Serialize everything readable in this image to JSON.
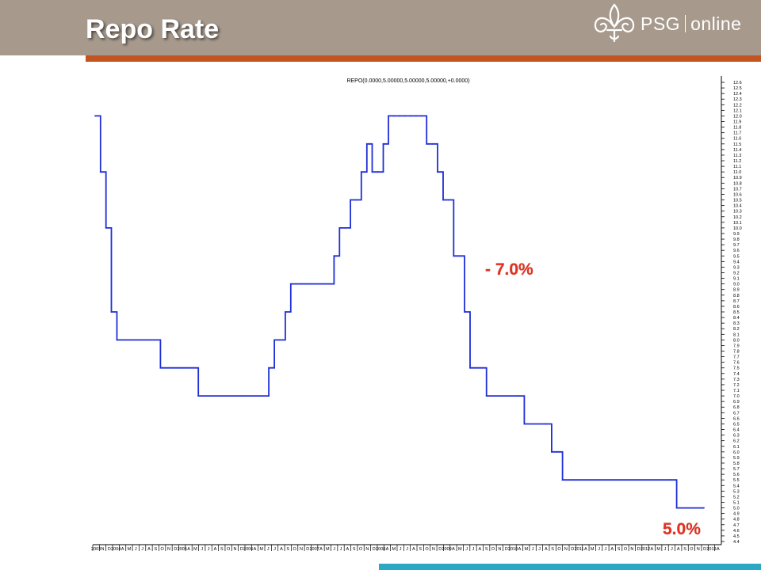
{
  "header": {
    "title": "Repo Rate",
    "logo_brand": "PSG",
    "logo_suffix": "online"
  },
  "colors": {
    "header_bg": "#a79a8d",
    "accent_bar": "#c4541f",
    "line": "#1f2ed6",
    "annotation": "#e8301e",
    "bottom_bar": "#2ba8c4"
  },
  "chart_data": {
    "type": "line",
    "title": "REPO(0.0000,5.00000,5.00000,5.00000,+0.0000)",
    "xlabel": "",
    "ylabel": "",
    "ylim": [
      4.4,
      12.6
    ],
    "yaxis_position": "right",
    "ytick_step": 0.1,
    "step": true,
    "x_tick_labels": [
      "2003",
      "N",
      "D",
      "2004",
      "A",
      "M",
      "J",
      "J",
      "A",
      "S",
      "O",
      "N",
      "D",
      "2005",
      "A",
      "M",
      "J",
      "J",
      "A",
      "S",
      "O",
      "N",
      "D",
      "2006",
      "A",
      "M",
      "J",
      "J",
      "A",
      "S",
      "O",
      "N",
      "D",
      "2007",
      "A",
      "M",
      "J",
      "J",
      "A",
      "S",
      "O",
      "N",
      "D",
      "2008",
      "A",
      "M",
      "J",
      "J",
      "A",
      "S",
      "O",
      "N",
      "D",
      "2009",
      "A",
      "M",
      "J",
      "J",
      "A",
      "S",
      "O",
      "N",
      "D",
      "2010",
      "A",
      "M",
      "J",
      "J",
      "A",
      "S",
      "O",
      "N",
      "D",
      "2011",
      "A",
      "M",
      "J",
      "J",
      "A",
      "S",
      "O",
      "N",
      "D",
      "2012",
      "A",
      "M",
      "J",
      "J",
      "A",
      "S",
      "O",
      "N",
      "D",
      "2013",
      "A"
    ],
    "series": [
      {
        "name": "",
        "x": [
          "2003-09",
          "2003-10",
          "2003-11",
          "2003-12",
          "2004-01",
          "2004-02",
          "2004-08",
          "2004-09",
          "2004-12",
          "2005-04",
          "2005-12",
          "2006-05",
          "2006-06",
          "2006-07",
          "2006-08",
          "2006-09",
          "2006-10",
          "2006-11",
          "2006-12",
          "2007-05",
          "2007-06",
          "2007-07",
          "2007-08",
          "2007-09",
          "2007-10",
          "2007-11",
          "2007-12",
          "2008-01",
          "2008-02",
          "2008-03",
          "2008-04",
          "2008-05",
          "2008-06",
          "2008-07",
          "2008-08",
          "2008-09",
          "2008-10",
          "2008-11",
          "2008-12",
          "2009-01",
          "2009-02",
          "2009-03",
          "2009-04",
          "2009-05",
          "2009-06",
          "2009-07",
          "2009-08",
          "2009-09",
          "2010-03",
          "2010-04",
          "2010-08",
          "2010-09",
          "2010-10",
          "2010-11",
          "2011-01",
          "2012-07",
          "2012-08",
          "2013-01"
        ],
        "values": [
          12.0,
          11.0,
          10.0,
          8.5,
          8.0,
          8.0,
          8.0,
          7.5,
          7.5,
          7.0,
          7.0,
          7.5,
          8.0,
          8.0,
          8.5,
          9.0,
          9.0,
          9.0,
          9.0,
          9.5,
          10.0,
          10.0,
          10.5,
          10.5,
          11.0,
          11.5,
          11.0,
          11.0,
          11.5,
          12.0,
          12.0,
          12.0,
          12.0,
          12.0,
          12.0,
          12.0,
          11.5,
          11.5,
          11.0,
          10.5,
          10.5,
          9.5,
          9.5,
          8.5,
          7.5,
          7.5,
          7.5,
          7.0,
          7.0,
          6.5,
          6.5,
          6.0,
          6.0,
          5.5,
          5.5,
          5.5,
          5.0,
          5.0
        ]
      }
    ],
    "annotations": [
      "- 7.0%",
      "5.0%"
    ]
  }
}
